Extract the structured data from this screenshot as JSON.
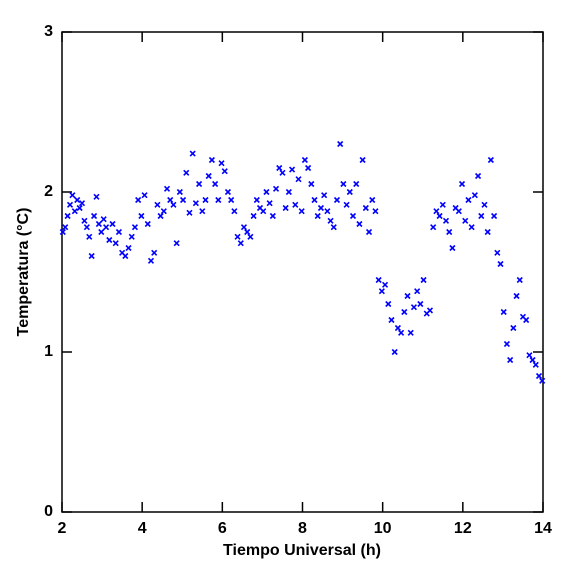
{
  "chart_data": {
    "type": "scatter",
    "xlabel": "Tiempo Universal (h)",
    "ylabel": "Temperatura (°C)",
    "xlim": [
      2,
      14
    ],
    "ylim": [
      0,
      3
    ],
    "xticks": [
      2,
      4,
      6,
      8,
      10,
      12,
      14
    ],
    "yticks": [
      0,
      1,
      2,
      3
    ],
    "color": "#0000ff",
    "x": [
      2.02,
      2.08,
      2.14,
      2.2,
      2.26,
      2.32,
      2.38,
      2.44,
      2.5,
      2.56,
      2.62,
      2.68,
      2.74,
      2.8,
      2.86,
      2.92,
      2.98,
      3.04,
      3.1,
      3.18,
      3.26,
      3.34,
      3.42,
      3.5,
      3.58,
      3.66,
      3.74,
      3.82,
      3.9,
      3.98,
      4.06,
      4.14,
      4.22,
      4.3,
      4.38,
      4.46,
      4.54,
      4.62,
      4.7,
      4.78,
      4.86,
      4.94,
      5.02,
      5.1,
      5.18,
      5.26,
      5.34,
      5.42,
      5.5,
      5.58,
      5.66,
      5.74,
      5.82,
      5.9,
      5.98,
      6.06,
      6.14,
      6.22,
      6.3,
      6.38,
      6.46,
      6.54,
      6.62,
      6.7,
      6.78,
      6.86,
      6.94,
      7.02,
      7.1,
      7.18,
      7.26,
      7.34,
      7.42,
      7.5,
      7.58,
      7.66,
      7.74,
      7.82,
      7.9,
      7.98,
      8.06,
      8.14,
      8.22,
      8.3,
      8.38,
      8.46,
      8.54,
      8.62,
      8.7,
      8.78,
      8.86,
      8.94,
      9.02,
      9.1,
      9.18,
      9.26,
      9.34,
      9.42,
      9.5,
      9.58,
      9.66,
      9.74,
      9.82,
      9.9,
      9.98,
      10.06,
      10.14,
      10.22,
      10.3,
      10.38,
      10.46,
      10.54,
      10.62,
      10.7,
      10.78,
      10.86,
      10.94,
      11.02,
      11.1,
      11.18,
      11.26,
      11.34,
      11.42,
      11.5,
      11.58,
      11.66,
      11.74,
      11.82,
      11.9,
      11.98,
      12.06,
      12.14,
      12.22,
      12.3,
      12.38,
      12.46,
      12.54,
      12.62,
      12.7,
      12.78,
      12.86,
      12.94,
      13.02,
      13.1,
      13.18,
      13.26,
      13.34,
      13.42,
      13.5,
      13.58,
      13.66,
      13.74,
      13.82,
      13.9,
      13.98
    ],
    "values": [
      1.75,
      1.78,
      1.85,
      1.92,
      1.98,
      1.88,
      1.95,
      1.9,
      1.93,
      1.82,
      1.78,
      1.72,
      1.6,
      1.85,
      1.97,
      1.8,
      1.75,
      1.83,
      1.78,
      1.7,
      1.8,
      1.68,
      1.75,
      1.62,
      1.6,
      1.65,
      1.72,
      1.78,
      1.95,
      1.85,
      1.98,
      1.8,
      1.57,
      1.62,
      1.92,
      1.85,
      1.88,
      2.02,
      1.95,
      1.92,
      1.68,
      2.0,
      1.95,
      2.12,
      1.87,
      2.24,
      1.93,
      2.05,
      1.88,
      1.95,
      2.1,
      2.2,
      2.05,
      1.95,
      2.18,
      2.13,
      2.0,
      1.95,
      1.88,
      1.72,
      1.68,
      1.78,
      1.75,
      1.72,
      1.85,
      1.95,
      1.9,
      1.88,
      2.0,
      1.93,
      1.85,
      2.02,
      2.15,
      2.12,
      1.9,
      2.0,
      2.14,
      1.92,
      2.08,
      1.88,
      2.2,
      2.15,
      2.05,
      1.95,
      1.85,
      1.9,
      1.98,
      1.88,
      1.82,
      1.78,
      1.95,
      2.3,
      2.05,
      1.92,
      2.0,
      1.85,
      2.05,
      1.8,
      2.2,
      1.9,
      1.75,
      1.95,
      1.88,
      1.45,
      1.38,
      1.42,
      1.3,
      1.2,
      1.0,
      1.15,
      1.12,
      1.25,
      1.35,
      1.12,
      1.28,
      1.38,
      1.3,
      1.45,
      1.24,
      1.26,
      1.78,
      1.88,
      1.85,
      1.92,
      1.82,
      1.75,
      1.65,
      1.9,
      1.88,
      2.05,
      1.82,
      1.95,
      1.78,
      1.98,
      2.1,
      1.85,
      1.92,
      1.75,
      2.2,
      1.85,
      1.62,
      1.55,
      1.25,
      1.05,
      0.95,
      1.15,
      1.35,
      1.45,
      1.22,
      1.2,
      0.98,
      0.95,
      0.92,
      0.85,
      0.82
    ]
  }
}
